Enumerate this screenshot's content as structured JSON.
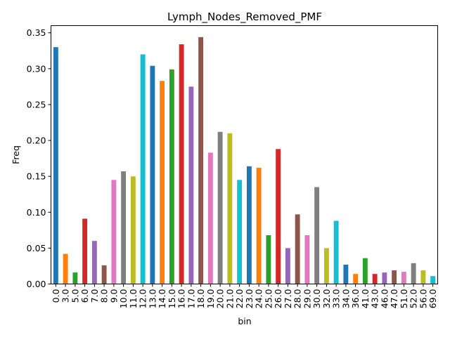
{
  "chart_data": {
    "type": "bar",
    "title": "Lymph_Nodes_Removed_PMF",
    "xlabel": "bin",
    "ylabel": "Freq",
    "ylim": [
      0,
      0.36
    ],
    "yticks": [
      "0.00",
      "0.05",
      "0.10",
      "0.15",
      "0.20",
      "0.25",
      "0.30",
      "0.35"
    ],
    "grid": false,
    "legend": "none",
    "categories": [
      "0.0",
      "3.0",
      "5.0",
      "6.0",
      "7.0",
      "8.0",
      "9.0",
      "10.0",
      "11.0",
      "12.0",
      "13.0",
      "14.0",
      "15.0",
      "16.0",
      "17.0",
      "18.0",
      "19.0",
      "20.0",
      "21.0",
      "22.0",
      "23.0",
      "24.0",
      "25.0",
      "26.0",
      "27.0",
      "28.0",
      "29.0",
      "30.0",
      "32.0",
      "33.0",
      "34.0",
      "36.0",
      "41.0",
      "43.0",
      "46.0",
      "47.0",
      "51.0",
      "52.0",
      "56.0",
      "69.0"
    ],
    "values": [
      0.33,
      0.042,
      0.016,
      0.091,
      0.06,
      0.026,
      0.145,
      0.157,
      0.15,
      0.32,
      0.304,
      0.283,
      0.299,
      0.334,
      0.275,
      0.344,
      0.183,
      0.212,
      0.21,
      0.145,
      0.164,
      0.162,
      0.068,
      0.188,
      0.05,
      0.097,
      0.068,
      0.135,
      0.05,
      0.088,
      0.027,
      0.014,
      0.036,
      0.014,
      0.016,
      0.019,
      0.017,
      0.029,
      0.019,
      0.011
    ],
    "colors": [
      "#1f77b4",
      "#ff7f0e",
      "#2ca02c",
      "#d62728",
      "#9467bd",
      "#8c564b",
      "#e377c2",
      "#7f7f7f",
      "#bcbd22",
      "#17becf"
    ]
  }
}
